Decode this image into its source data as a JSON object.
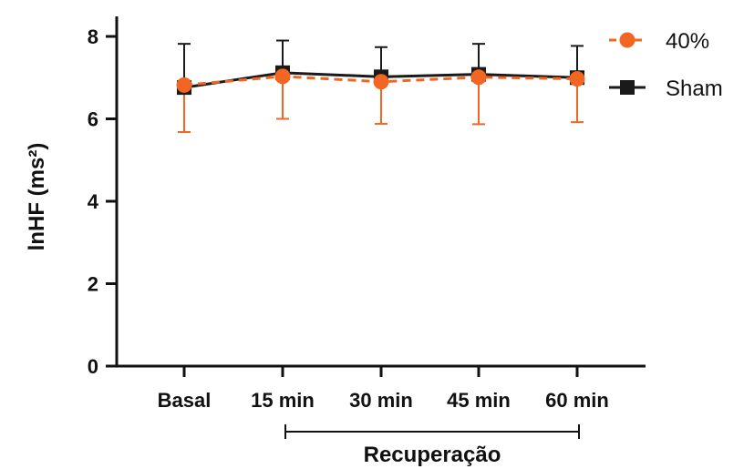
{
  "chart_data": {
    "type": "line",
    "categories": [
      "Basal",
      "15 min",
      "30 min",
      "45 min",
      "60 min"
    ],
    "ylabel": "lnHF (ms²)",
    "ylim": [
      0,
      8
    ],
    "yticks": [
      "0",
      "2",
      "4",
      "6",
      "8"
    ],
    "bracket_label": "Recuperação",
    "legend_position": "top-right",
    "series": [
      {
        "name": "40%",
        "color": "#f26522",
        "marker": "circle",
        "line_style": "dashed",
        "values": [
          6.82,
          7.03,
          6.9,
          7.01,
          6.97
        ],
        "error_low": [
          5.68,
          6.0,
          5.88,
          5.87,
          5.92
        ],
        "error_high": [
          6.82,
          7.03,
          6.9,
          7.01,
          6.97
        ]
      },
      {
        "name": "Sham",
        "color": "#1a1a1a",
        "marker": "square",
        "line_style": "solid",
        "values": [
          6.76,
          7.12,
          7.02,
          7.08,
          7.0
        ],
        "error_low": [
          6.76,
          7.12,
          7.02,
          7.08,
          7.0
        ],
        "error_high": [
          7.82,
          7.9,
          7.74,
          7.82,
          7.77
        ]
      }
    ]
  }
}
